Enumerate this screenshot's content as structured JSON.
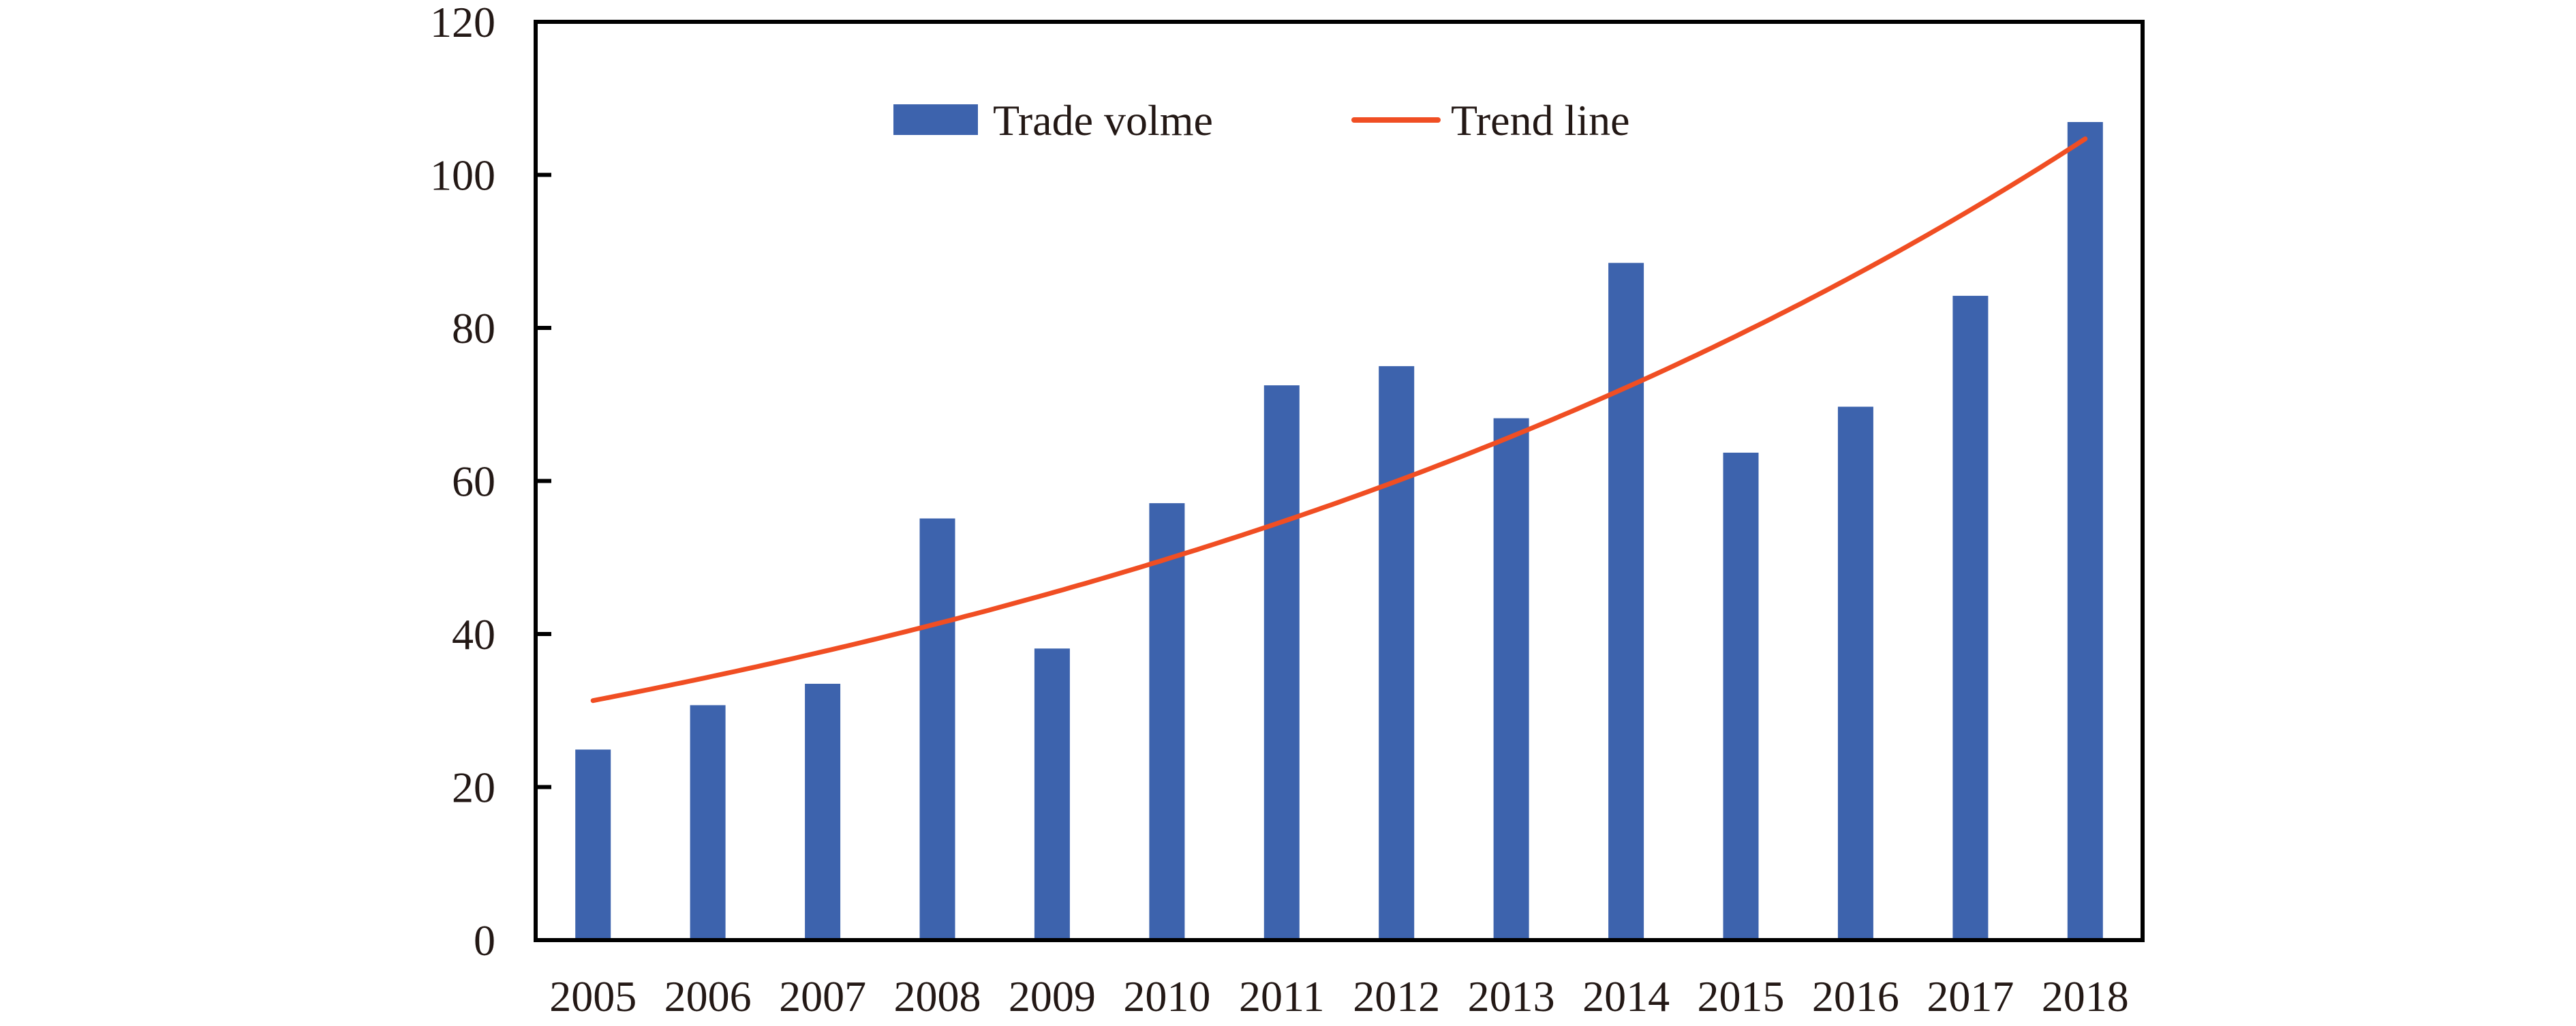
{
  "chart_data": {
    "type": "bar",
    "title": "",
    "xlabel": "",
    "ylabel": "",
    "categories": [
      "2005",
      "2006",
      "2007",
      "2008",
      "2009",
      "2010",
      "2011",
      "2012",
      "2013",
      "2014",
      "2015",
      "2016",
      "2017",
      "2018"
    ],
    "series": [
      {
        "name": "Trade volme",
        "type": "bar",
        "color": "#3D63AD",
        "values": [
          24.9,
          30.7,
          33.5,
          55.1,
          38.1,
          57.1,
          72.5,
          75.0,
          68.2,
          88.5,
          63.7,
          69.7,
          84.2,
          106.9
        ]
      },
      {
        "name": "Trend line",
        "type": "line",
        "fit": "exponential",
        "color": "#F04E23",
        "start_value": 31.3,
        "end_value": 104.7
      }
    ],
    "ylim": [
      0,
      120
    ],
    "yticks": [
      0,
      20,
      40,
      60,
      80,
      100,
      120
    ],
    "ytick_labels": [
      "0",
      "20",
      "40",
      "60",
      "80",
      "100",
      "120"
    ],
    "grid": false,
    "legend": {
      "placement": "top-center",
      "entries": [
        "Trade volme",
        "Trend line"
      ]
    },
    "axis_color": "#000000",
    "text_color": "#231815"
  }
}
